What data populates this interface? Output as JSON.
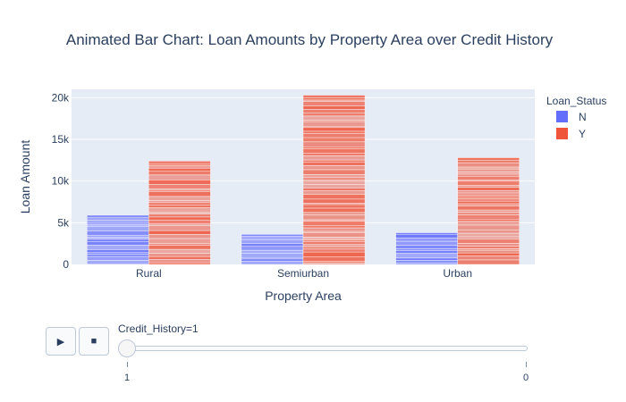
{
  "chart_data": {
    "type": "bar",
    "title": "Animated Bar Chart: Loan Amounts by Property Area over Credit History",
    "xlabel": "Property Area",
    "ylabel": "Loan Amount",
    "categories": [
      "Rural",
      "Semiurban",
      "Urban"
    ],
    "series": [
      {
        "name": "N",
        "color": "#636efa",
        "values": [
          5900,
          3600,
          3800
        ]
      },
      {
        "name": "Y",
        "color": "#ef553b",
        "values": [
          12400,
          20300,
          12800
        ]
      }
    ],
    "ylim": [
      0,
      21000
    ],
    "yticks": [
      0,
      5000,
      10000,
      15000,
      20000
    ],
    "ytick_labels": [
      "0",
      "5k",
      "10k",
      "15k",
      "20k"
    ],
    "grid": true,
    "legend": {
      "title": "Loan_Status",
      "placement": "top-right"
    },
    "plot_bg": "#e5ecf6"
  },
  "animation": {
    "play_label": "play",
    "stop_label": "stop",
    "slider_label": "Credit_History=1",
    "steps": [
      "1",
      "0"
    ],
    "current_step": "1"
  },
  "icons": {
    "play": "▶",
    "stop": "■"
  }
}
